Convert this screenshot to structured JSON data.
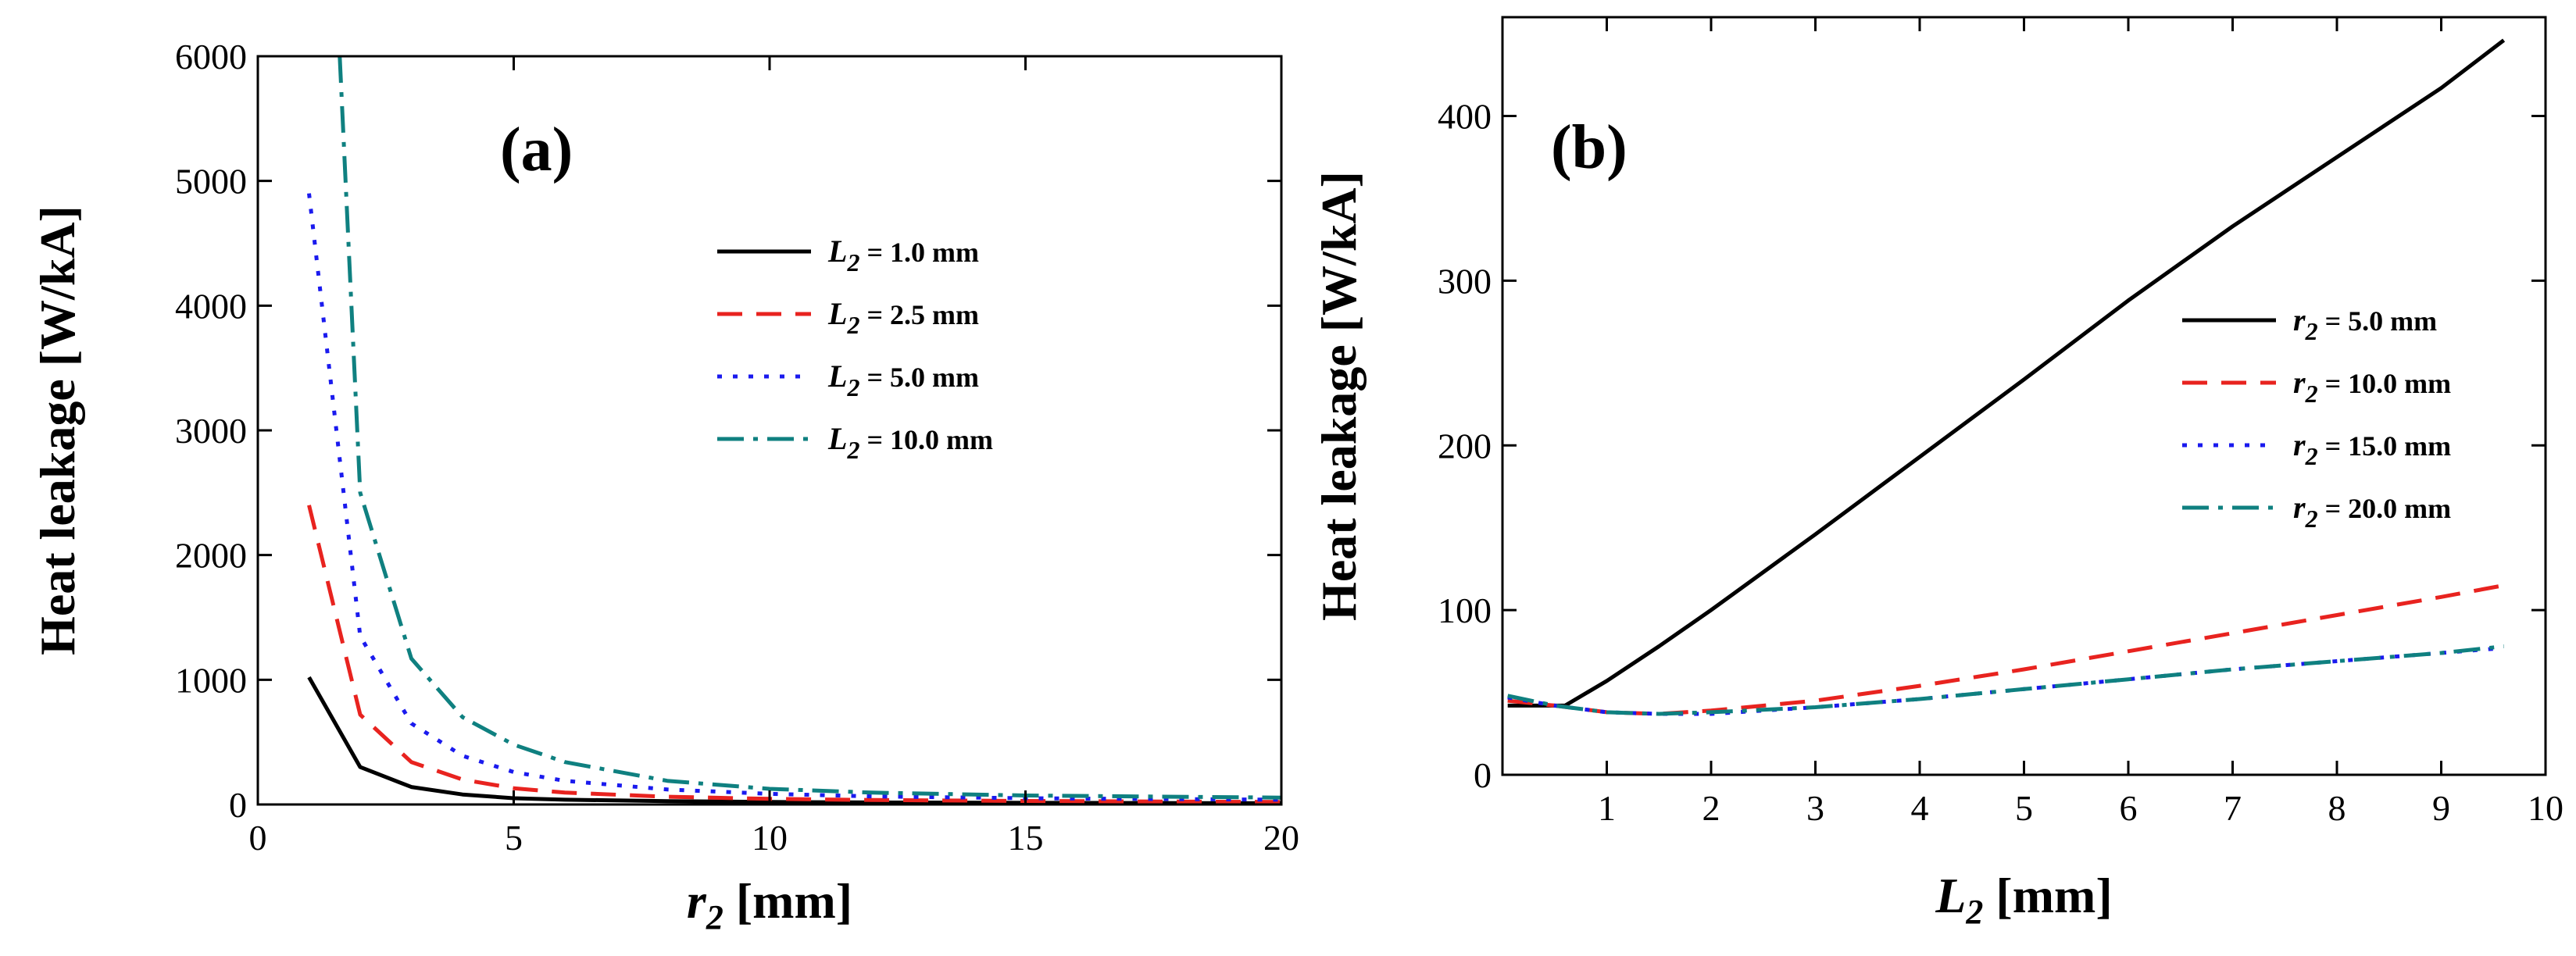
{
  "chart_data": [
    {
      "type": "line",
      "panel": "(a)",
      "xlabel": "r2 [mm]",
      "xlabel_main": "r",
      "xlabel_sub": "2",
      "xlabel_unit": " [mm]",
      "ylabel": "Heat leakage  [W/kA]",
      "xlim": [
        0,
        20
      ],
      "ylim": [
        0,
        6000
      ],
      "xticks": [
        0,
        5,
        10,
        15,
        20
      ],
      "yticks": [
        0,
        1000,
        2000,
        3000,
        4000,
        5000,
        6000
      ],
      "legend_position": "upper-right",
      "series": [
        {
          "name": "L2 = 1.0 mm",
          "name_main": "L",
          "name_sub": "2",
          "name_rest": " = 1.0 mm",
          "color": "#000000",
          "dash": "",
          "x": [
            1,
            2,
            3,
            4,
            5,
            6,
            8,
            10,
            12,
            15,
            20
          ],
          "y": [
            1020,
            300,
            140,
            80,
            50,
            38,
            27,
            20,
            16,
            13,
            10
          ]
        },
        {
          "name": "L2 = 2.5 mm",
          "name_main": "L",
          "name_sub": "2",
          "name_rest": " = 2.5 mm",
          "color": "#e8231f",
          "dash": "32,18",
          "x": [
            1,
            2,
            3,
            4,
            5,
            6,
            8,
            10,
            12,
            15,
            20
          ],
          "y": [
            2400,
            720,
            340,
            200,
            130,
            95,
            62,
            45,
            36,
            28,
            20
          ]
        },
        {
          "name": "L2 = 5.0 mm",
          "name_main": "L",
          "name_sub": "2",
          "name_rest": " = 5.0 mm",
          "color": "#1a1aee",
          "dash": "6,14",
          "x": [
            1,
            2,
            3,
            4,
            5,
            6,
            8,
            10,
            12,
            15,
            20
          ],
          "y": [
            4900,
            1350,
            650,
            390,
            260,
            190,
            120,
            85,
            65,
            50,
            38
          ]
        },
        {
          "name": "L2 = 10.0 mm",
          "name_main": "L",
          "name_sub": "2",
          "name_rest": " = 10.0 mm",
          "color": "#0f8080",
          "dash": "34,12,6,12",
          "x": [
            1.6,
            2,
            3,
            4,
            5,
            6,
            8,
            10,
            12,
            15,
            20
          ],
          "y": [
            6000,
            2500,
            1170,
            700,
            480,
            340,
            190,
            125,
            95,
            72,
            55
          ]
        }
      ]
    },
    {
      "type": "line",
      "panel": "(b)",
      "xlabel": "L2 [mm]",
      "xlabel_main": "L",
      "xlabel_sub": "2",
      "xlabel_unit": " [mm]",
      "ylabel": "Heat leakage [W/kA]",
      "xlim": [
        0,
        10
      ],
      "ylim": [
        0,
        460
      ],
      "xticks": [
        1,
        2,
        3,
        4,
        5,
        6,
        7,
        8,
        9,
        10
      ],
      "yticks": [
        0,
        100,
        200,
        300,
        400
      ],
      "legend_position": "right",
      "series": [
        {
          "name": "r2 = 5.0 mm",
          "name_main": "r",
          "name_sub": "2",
          "name_rest": " = 5.0 mm",
          "color": "#000000",
          "dash": "",
          "x": [
            0.05,
            0.6,
            1,
            1.5,
            2,
            3,
            4,
            5,
            6,
            7,
            8,
            9,
            9.6
          ],
          "y": [
            42,
            42,
            57,
            78,
            100,
            146,
            193,
            240,
            288,
            333,
            375,
            417,
            446
          ]
        },
        {
          "name": "r2 = 10.0 mm",
          "name_main": "r",
          "name_sub": "2",
          "name_rest": " = 10.0 mm",
          "color": "#e8231f",
          "dash": "32,18",
          "x": [
            0.05,
            0.5,
            1,
            1.5,
            2,
            3,
            4,
            5,
            6,
            7,
            8,
            9,
            9.6
          ],
          "y": [
            45,
            42,
            38,
            37,
            39,
            45,
            54,
            64,
            75,
            86,
            97,
            108,
            115
          ]
        },
        {
          "name": "r2 = 15.0 mm",
          "name_main": "r",
          "name_sub": "2",
          "name_rest": " = 15.0 mm",
          "color": "#1a1aee",
          "dash": "6,14",
          "x": [
            0.05,
            0.5,
            1,
            1.5,
            2,
            3,
            4,
            5,
            6,
            7,
            8,
            9,
            9.6
          ],
          "y": [
            47,
            42,
            38,
            37,
            37,
            41,
            46,
            52,
            58,
            64,
            69,
            74,
            77
          ]
        },
        {
          "name": "r2 = 20.0 mm",
          "name_main": "r",
          "name_sub": "2",
          "name_rest": " = 20.0 mm",
          "color": "#0f8080",
          "dash": "34,12,6,12",
          "x": [
            0.05,
            0.5,
            1,
            1.5,
            2,
            3,
            4,
            5,
            6,
            7,
            8,
            9,
            9.6
          ],
          "y": [
            48,
            42,
            38,
            37,
            38,
            41,
            46,
            52,
            58,
            64,
            69,
            74,
            78
          ]
        }
      ]
    }
  ]
}
